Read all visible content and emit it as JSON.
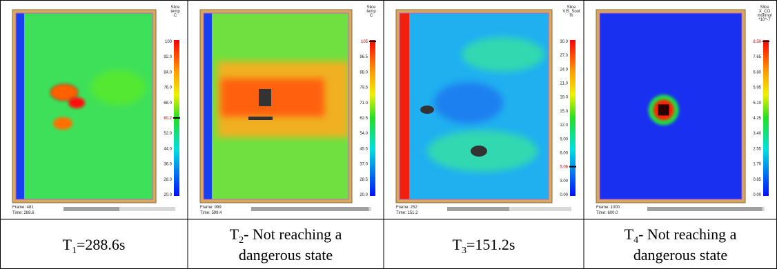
{
  "panels": [
    {
      "title": [
        "Slice",
        "temp",
        "C"
      ],
      "ticks": [
        "100",
        "92.0",
        "84.0",
        "76.0",
        "68.0",
        {
          "label": "60.2",
          "color": "#c00000"
        },
        "52.0",
        "44.0",
        "36.0",
        "28.0",
        "20.0"
      ],
      "frame": "Frame: 481",
      "time": "Time: 288.6",
      "caption": {
        "symbol": "T",
        "sub": "1",
        "text": "=288.6s"
      }
    },
    {
      "title": [
        "Slice",
        "temp",
        "C"
      ],
      "ticks": [
        {
          "label": "105",
          "color": "#c00000"
        },
        "96.5",
        "88.0",
        "79.5",
        "71.0",
        "62.5",
        "54.0",
        "45.5",
        "37.0",
        "28.5",
        "20.0"
      ],
      "frame": "Frame: 999",
      "time": "Time: 599.4",
      "caption": {
        "symbol": "T",
        "sub": "2",
        "text": "- Not reaching a",
        "line2": "dangerous state"
      }
    },
    {
      "title": [
        "Slice",
        "VIS_Soot",
        "m"
      ],
      "ticks": [
        "30.0",
        "27.0",
        "24.0",
        "21.0",
        "18.0",
        "15.0",
        "12.0",
        "9.00",
        "6.00",
        {
          "label": "5.06",
          "color": "#c00000"
        },
        "3.00",
        "0.00"
      ],
      "frame": "Frame: 252",
      "time": "Time: 151.2",
      "caption": {
        "symbol": "T",
        "sub": "3",
        "text": "=151.2s"
      }
    },
    {
      "title": [
        "Slice",
        "X_CO",
        "mol/mol",
        "*10^-7"
      ],
      "ticks": [
        {
          "label": "8.50",
          "color": "#c00000"
        },
        "7.65",
        "6.80",
        "5.95",
        "5.10",
        "4.25",
        "3.40",
        "2.55",
        "1.70",
        "0.85",
        "0.00"
      ],
      "frame": "Frame: 1000",
      "time": "Time: 600.0",
      "caption": {
        "symbol": "T",
        "sub": "4",
        "text": "- Not reaching a",
        "line2": "dangerous state"
      }
    }
  ]
}
